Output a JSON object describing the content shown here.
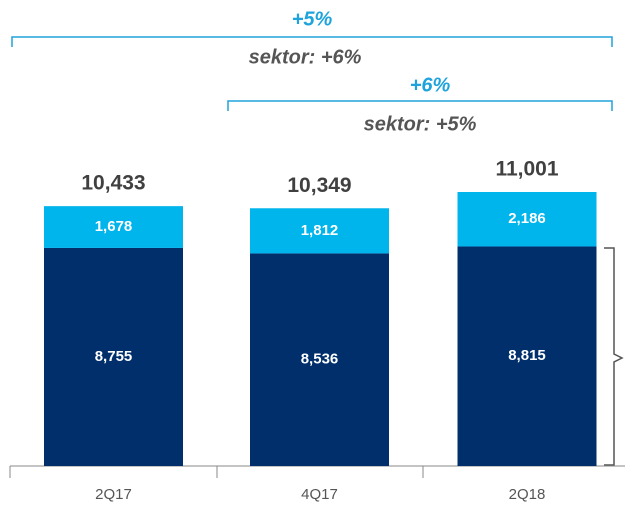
{
  "chart_data": {
    "type": "stacked_bar",
    "categories": [
      "2Q17",
      "4Q17",
      "2Q18"
    ],
    "series": [
      {
        "color": "#002f6c",
        "values": [
          8755,
          8536,
          8815
        ],
        "value_labels": [
          "8,755",
          "8,536",
          "8,815"
        ]
      },
      {
        "color": "#00b4ec",
        "values": [
          1678,
          1812,
          2186
        ],
        "value_labels": [
          "1,678",
          "1,812",
          "2,186"
        ]
      }
    ],
    "totals": [
      10433,
      10349,
      11001
    ],
    "total_labels": [
      "10,433",
      "10,349",
      "11,001"
    ],
    "annotations": [
      {
        "text": "+5%"
      },
      {
        "text": "sektor: +6%"
      },
      {
        "text": "+6%"
      },
      {
        "text": "sektor: +5%"
      }
    ]
  }
}
